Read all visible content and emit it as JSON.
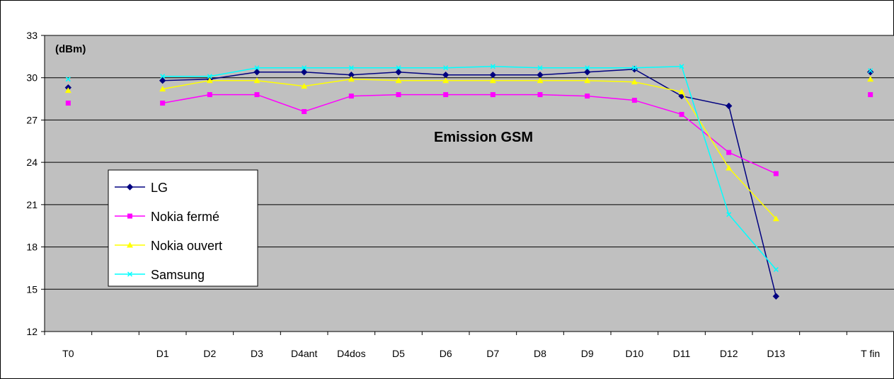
{
  "chart_data": {
    "type": "line",
    "title": "Emission GSM",
    "ylabel": "(dBm)",
    "xlabel": "",
    "ylim": [
      12,
      33
    ],
    "yticks": [
      12,
      15,
      18,
      21,
      24,
      27,
      30,
      33
    ],
    "categories": [
      "T0",
      "",
      "D1",
      "D2",
      "D3",
      "D4ant",
      "D4dos",
      "D5",
      "D6",
      "D7",
      "D8",
      "D9",
      "D10",
      "D11",
      "D12",
      "D13",
      "",
      "T fin"
    ],
    "grid": true,
    "legend_position": "left",
    "series": [
      {
        "name": "LG",
        "color": "#000080",
        "marker": "diamond",
        "values": [
          29.3,
          null,
          29.8,
          29.9,
          30.4,
          30.4,
          30.2,
          30.4,
          30.2,
          30.2,
          30.2,
          30.4,
          30.6,
          28.7,
          28.0,
          14.5,
          null,
          30.4
        ]
      },
      {
        "name": "Nokia fermé",
        "color": "#FF00FF",
        "marker": "square",
        "values": [
          28.2,
          null,
          28.2,
          28.8,
          28.8,
          27.6,
          28.7,
          28.8,
          28.8,
          28.8,
          28.8,
          28.7,
          28.4,
          27.4,
          24.7,
          23.2,
          null,
          28.8
        ]
      },
      {
        "name": "Nokia ouvert",
        "color": "#FFFF00",
        "marker": "triangle",
        "values": [
          29.1,
          null,
          29.2,
          29.8,
          29.8,
          29.4,
          29.9,
          29.8,
          29.8,
          29.8,
          29.8,
          29.8,
          29.7,
          29.0,
          23.6,
          20.0,
          null,
          29.9
        ]
      },
      {
        "name": "Samsung",
        "color": "#00FFFF",
        "marker": "x",
        "values": [
          29.9,
          null,
          30.1,
          30.1,
          30.7,
          30.7,
          30.7,
          30.7,
          30.7,
          30.8,
          30.7,
          30.7,
          30.7,
          30.8,
          20.3,
          16.4,
          null,
          30.5
        ]
      }
    ]
  }
}
